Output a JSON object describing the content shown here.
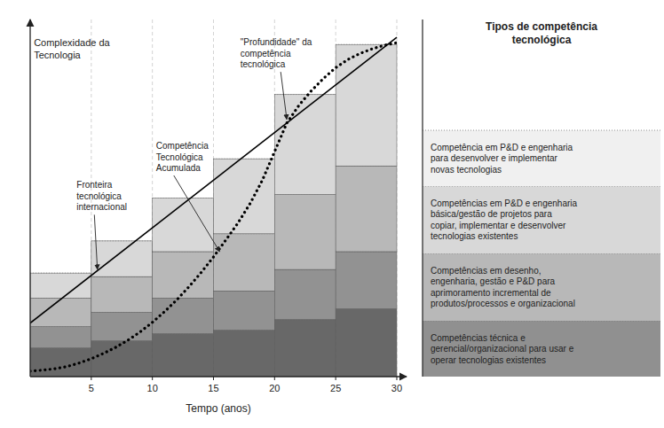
{
  "chart_data": {
    "type": "bar",
    "stacked": true,
    "title": "Tipos de competência\ntecnológica",
    "xlabel": "Tempo (anos)",
    "x": [
      0,
      5,
      10,
      15,
      20,
      25
    ],
    "xlim": [
      0,
      30.8
    ],
    "xticks": [
      5,
      10,
      15,
      20,
      25,
      30
    ],
    "ylim": [
      0,
      10
    ],
    "tick_labels": "x",
    "grid": true,
    "series": [
      {
        "type": "bar",
        "color": "#686868",
        "values": [
          0.8,
          1.0,
          1.2,
          1.3,
          1.6,
          1.9
        ]
      },
      {
        "type": "bar",
        "color": "#929292",
        "values": [
          0.6,
          0.8,
          1.0,
          1.1,
          1.4,
          1.6
        ]
      },
      {
        "type": "bar",
        "color": "#b8b8b8",
        "values": [
          0.8,
          1.0,
          1.3,
          1.6,
          2.1,
          2.4
        ]
      },
      {
        "type": "bar",
        "color": "#d8d8d8",
        "values": [
          0.7,
          1.0,
          1.5,
          2.1,
          2.8,
          3.4
        ]
      },
      {
        "type": "line",
        "color": "#000000",
        "line_style": "solid",
        "x": [
          0,
          30
        ],
        "values": [
          1.5,
          9.5
        ]
      },
      {
        "type": "line",
        "color": "#000000",
        "line_style": "dotted",
        "x": [
          0,
          1,
          2,
          3,
          4,
          5,
          6,
          7,
          8,
          9,
          10,
          11,
          12,
          13,
          14,
          15,
          16,
          17,
          18,
          19,
          19.5,
          20,
          20.5,
          21,
          22,
          23,
          24,
          25,
          26,
          27,
          28,
          29,
          30
        ],
        "values": [
          0.15,
          0.18,
          0.22,
          0.28,
          0.38,
          0.5,
          0.65,
          0.82,
          1.02,
          1.25,
          1.52,
          1.82,
          2.15,
          2.52,
          2.92,
          3.35,
          3.82,
          4.3,
          4.85,
          5.5,
          5.9,
          6.3,
          6.7,
          7.1,
          7.6,
          8.0,
          8.35,
          8.65,
          8.88,
          9.05,
          9.18,
          9.28,
          9.35
        ]
      }
    ],
    "annotations": [
      {
        "text": "Complexidade da\nTecnologia"
      },
      {
        "text": "Fronteira\ntecnológica\ninternacional"
      },
      {
        "text": "Competência\nTecnológica\nAcumulada"
      },
      {
        "text": "\"Profundidade\" da\ncompetência\ntecnológica"
      },
      {
        "text": "Competência em P&D e engenharia\npara desenvolver e implementar\nnovas tecnologias",
        "color": "#f0f0f0"
      },
      {
        "text": "Competências em P&D e engenharia\nbásica/gestão de projetos para\ncopiar, implementar e desenvolver\ntecnologias existentes",
        "color": "#d8d8d8"
      },
      {
        "text": "Competências em desenho,\nengenharia, gestão e P&D para\naprimoramento incremental de\nprodutos/processos e organizacional",
        "color": "#b8b8b8"
      },
      {
        "text": "Competências técnica e\ngerencial/organizacional para usar e\noperar tecnologias existentes",
        "color": "#909090"
      }
    ]
  }
}
